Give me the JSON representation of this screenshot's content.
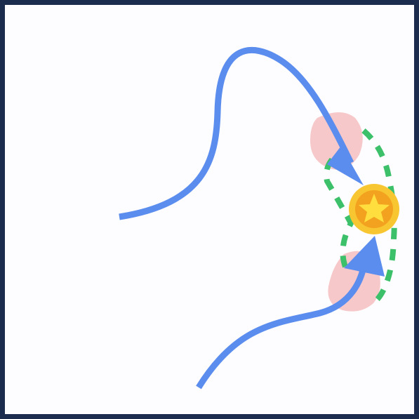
{
  "game": {
    "board": {
      "background_color": "#fdfcfe",
      "border_color": "#1b2c4f"
    },
    "colors": {
      "path": "#5b8def",
      "goal_zone": "#3cc06a",
      "hazard": "#f7c8c9",
      "coin_outer": "#f8c631",
      "coin_inner": "#f3a21f",
      "star": "#ffde3e"
    },
    "goal": {
      "icon": "star-coin-icon"
    },
    "paths": [
      {
        "name": "upper-path",
        "arrow": "arrow-head-icon"
      },
      {
        "name": "lower-path",
        "arrow": "arrow-head-icon"
      }
    ]
  }
}
